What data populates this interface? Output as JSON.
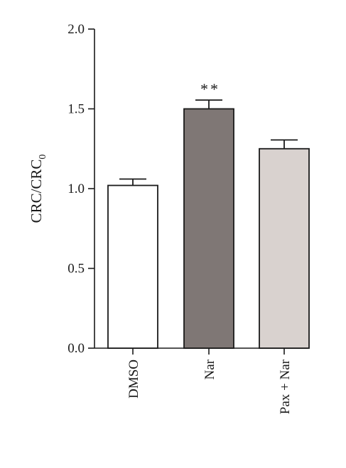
{
  "chart_data": {
    "type": "bar",
    "ylabel_main": "CRC/CRC",
    "ylabel_subscript": "0",
    "categories": [
      "DMSO",
      "Nar",
      "Pax + Nar"
    ],
    "values": [
      1.02,
      1.5,
      1.25
    ],
    "errors": [
      0.04,
      0.055,
      0.055
    ],
    "colors": [
      "#ffffff",
      "#7f7775",
      "#d9d2cf"
    ],
    "significance": [
      "",
      "**",
      ""
    ],
    "ylim": [
      0,
      2.0
    ],
    "yticks": [
      "0.0",
      "0.5",
      "1.0",
      "1.5",
      "2.0"
    ],
    "ytick_values": [
      0,
      0.5,
      1.0,
      1.5,
      2.0
    ],
    "grid": false
  }
}
